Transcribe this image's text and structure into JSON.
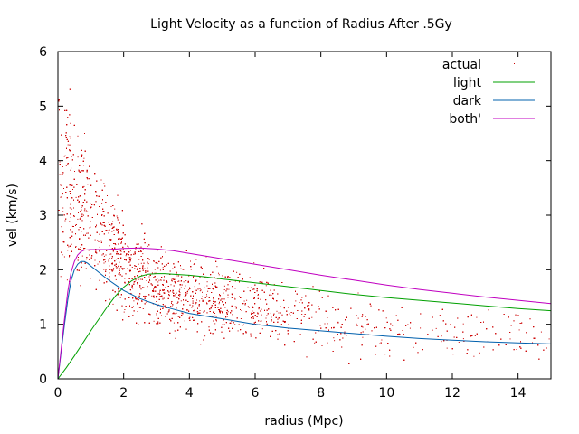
{
  "chart_data": {
    "type": "scatter",
    "title": "Light Velocity as a function of Radius After .5Gy",
    "xlabel": "radius (Mpc)",
    "ylabel": "vel (km/s)",
    "xlim": [
      0,
      15
    ],
    "ylim": [
      0,
      6
    ],
    "xticks": [
      "0",
      "2",
      "4",
      "6",
      "8",
      "10",
      "12",
      "14"
    ],
    "yticks": [
      "0",
      "1",
      "2",
      "3",
      "4",
      "5",
      "6"
    ],
    "grid": false,
    "legend_position": "top-right",
    "series": [
      {
        "name": "actual",
        "kind": "points",
        "color": "#cc0000",
        "trend": [
          [
            0.2,
            3.6
          ],
          [
            0.5,
            3.2
          ],
          [
            1.0,
            2.9
          ],
          [
            1.5,
            2.5
          ],
          [
            2.0,
            2.1
          ],
          [
            3.0,
            1.7
          ],
          [
            4.0,
            1.5
          ],
          [
            5.0,
            1.4
          ],
          [
            6.0,
            1.3
          ],
          [
            8.0,
            1.1
          ],
          [
            10.0,
            0.95
          ],
          [
            12.0,
            0.85
          ],
          [
            14.0,
            0.8
          ],
          [
            15.0,
            0.78
          ]
        ],
        "spread": [
          [
            0.2,
            1.4
          ],
          [
            1.0,
            1.0
          ],
          [
            2.0,
            0.8
          ],
          [
            4.0,
            0.6
          ],
          [
            8.0,
            0.5
          ],
          [
            15.0,
            0.45
          ]
        ],
        "density": [
          [
            0.0,
            0.55
          ],
          [
            1.0,
            1.0
          ],
          [
            2.0,
            0.9
          ],
          [
            3.0,
            0.8
          ],
          [
            4.0,
            0.65
          ],
          [
            6.0,
            0.35
          ],
          [
            8.0,
            0.2
          ],
          [
            10.0,
            0.12
          ],
          [
            12.0,
            0.08
          ],
          [
            15.0,
            0.06
          ]
        ],
        "count": 6000
      },
      {
        "name": "light",
        "kind": "line",
        "color": "#00a000",
        "x": [
          0,
          0.25,
          0.5,
          0.75,
          1.0,
          1.25,
          1.5,
          1.75,
          2.0,
          2.25,
          2.5,
          2.75,
          3.0,
          3.25,
          3.5,
          4.0,
          4.5,
          5.0,
          6.0,
          7.0,
          8.0,
          9.0,
          10.0,
          11.0,
          12.0,
          13.0,
          14.0,
          15.0
        ],
        "y": [
          0,
          0.2,
          0.42,
          0.65,
          0.88,
          1.1,
          1.32,
          1.52,
          1.68,
          1.8,
          1.88,
          1.92,
          1.93,
          1.93,
          1.92,
          1.9,
          1.87,
          1.83,
          1.76,
          1.69,
          1.62,
          1.55,
          1.49,
          1.44,
          1.39,
          1.34,
          1.29,
          1.25
        ]
      },
      {
        "name": "dark",
        "kind": "line",
        "color": "#0060ad",
        "x": [
          0,
          0.1,
          0.2,
          0.3,
          0.4,
          0.5,
          0.6,
          0.7,
          0.8,
          0.9,
          1.0,
          1.25,
          1.5,
          2.0,
          2.5,
          3.0,
          3.5,
          4.0,
          5.0,
          6.0,
          7.0,
          8.0,
          9.0,
          10.0,
          11.0,
          12.0,
          13.0,
          14.0,
          15.0
        ],
        "y": [
          0,
          0.5,
          1.0,
          1.45,
          1.8,
          2.0,
          2.1,
          2.15,
          2.15,
          2.12,
          2.07,
          1.95,
          1.83,
          1.62,
          1.47,
          1.36,
          1.28,
          1.2,
          1.1,
          1.0,
          0.93,
          0.88,
          0.83,
          0.78,
          0.74,
          0.71,
          0.68,
          0.66,
          0.64
        ]
      },
      {
        "name": "both'",
        "kind": "line",
        "color": "#c000c0",
        "x": [
          0,
          0.1,
          0.2,
          0.3,
          0.4,
          0.5,
          0.6,
          0.7,
          0.8,
          1.0,
          1.5,
          2.0,
          2.5,
          3.0,
          3.5,
          4.0,
          5.0,
          6.0,
          7.0,
          8.0,
          9.0,
          10.0,
          11.0,
          12.0,
          13.0,
          14.0,
          15.0
        ],
        "y": [
          0,
          0.55,
          1.1,
          1.6,
          1.95,
          2.15,
          2.27,
          2.33,
          2.36,
          2.37,
          2.37,
          2.39,
          2.4,
          2.38,
          2.35,
          2.3,
          2.2,
          2.1,
          2.0,
          1.9,
          1.81,
          1.72,
          1.64,
          1.57,
          1.5,
          1.44,
          1.38
        ]
      }
    ]
  }
}
